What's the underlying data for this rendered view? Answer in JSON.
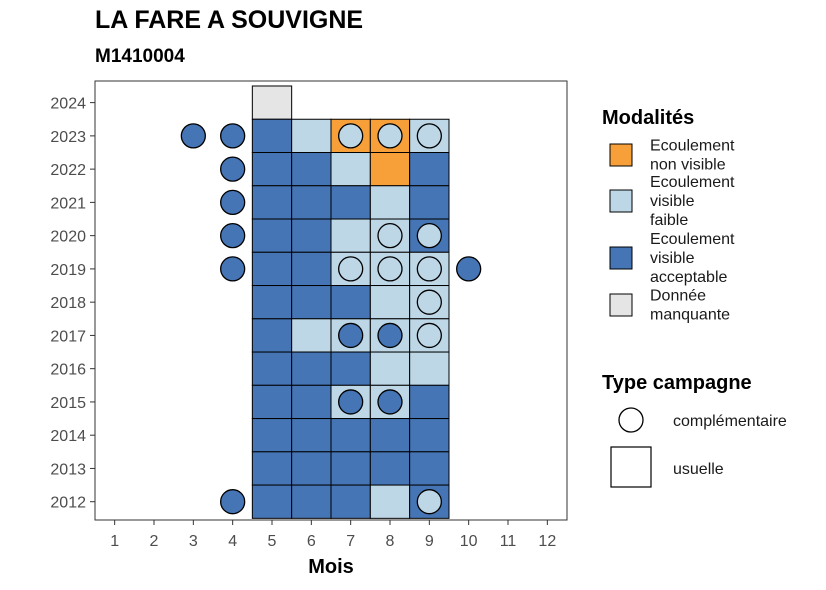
{
  "title": "LA FARE A SOUVIGNE",
  "subtitle": "M1410004",
  "chart_data": {
    "type": "heatmap",
    "xlabel": "Mois",
    "ylabel": "",
    "x_ticks": [
      1,
      2,
      3,
      4,
      5,
      6,
      7,
      8,
      9,
      10,
      11,
      12
    ],
    "y_ticks": [
      2012,
      2013,
      2014,
      2015,
      2016,
      2017,
      2018,
      2019,
      2020,
      2021,
      2022,
      2023,
      2024
    ],
    "colors": {
      "non_visible": "#F7A03A",
      "visible_faible": "#BDD7E7",
      "visible_acceptable": "#4575B4",
      "manquante": "#E5E5E5"
    },
    "usuelle": [
      {
        "year": 2024,
        "month": 5,
        "modalite": "manquante"
      },
      {
        "year": 2023,
        "month": 5,
        "modalite": "visible_acceptable"
      },
      {
        "year": 2023,
        "month": 6,
        "modalite": "visible_faible"
      },
      {
        "year": 2023,
        "month": 7,
        "modalite": "non_visible"
      },
      {
        "year": 2023,
        "month": 8,
        "modalite": "non_visible"
      },
      {
        "year": 2023,
        "month": 9,
        "modalite": "visible_faible"
      },
      {
        "year": 2022,
        "month": 5,
        "modalite": "visible_acceptable"
      },
      {
        "year": 2022,
        "month": 6,
        "modalite": "visible_acceptable"
      },
      {
        "year": 2022,
        "month": 7,
        "modalite": "visible_faible"
      },
      {
        "year": 2022,
        "month": 8,
        "modalite": "non_visible"
      },
      {
        "year": 2022,
        "month": 9,
        "modalite": "visible_acceptable"
      },
      {
        "year": 2021,
        "month": 5,
        "modalite": "visible_acceptable"
      },
      {
        "year": 2021,
        "month": 6,
        "modalite": "visible_acceptable"
      },
      {
        "year": 2021,
        "month": 7,
        "modalite": "visible_acceptable"
      },
      {
        "year": 2021,
        "month": 8,
        "modalite": "visible_faible"
      },
      {
        "year": 2021,
        "month": 9,
        "modalite": "visible_acceptable"
      },
      {
        "year": 2020,
        "month": 5,
        "modalite": "visible_acceptable"
      },
      {
        "year": 2020,
        "month": 6,
        "modalite": "visible_acceptable"
      },
      {
        "year": 2020,
        "month": 7,
        "modalite": "visible_faible"
      },
      {
        "year": 2020,
        "month": 8,
        "modalite": "visible_faible"
      },
      {
        "year": 2020,
        "month": 9,
        "modalite": "visible_acceptable"
      },
      {
        "year": 2019,
        "month": 5,
        "modalite": "visible_acceptable"
      },
      {
        "year": 2019,
        "month": 6,
        "modalite": "visible_acceptable"
      },
      {
        "year": 2019,
        "month": 7,
        "modalite": "visible_faible"
      },
      {
        "year": 2019,
        "month": 8,
        "modalite": "visible_faible"
      },
      {
        "year": 2019,
        "month": 9,
        "modalite": "visible_faible"
      },
      {
        "year": 2018,
        "month": 5,
        "modalite": "visible_acceptable"
      },
      {
        "year": 2018,
        "month": 6,
        "modalite": "visible_acceptable"
      },
      {
        "year": 2018,
        "month": 7,
        "modalite": "visible_acceptable"
      },
      {
        "year": 2018,
        "month": 8,
        "modalite": "visible_faible"
      },
      {
        "year": 2018,
        "month": 9,
        "modalite": "visible_faible"
      },
      {
        "year": 2017,
        "month": 5,
        "modalite": "visible_acceptable"
      },
      {
        "year": 2017,
        "month": 6,
        "modalite": "visible_faible"
      },
      {
        "year": 2017,
        "month": 7,
        "modalite": "visible_faible"
      },
      {
        "year": 2017,
        "month": 8,
        "modalite": "visible_faible"
      },
      {
        "year": 2017,
        "month": 9,
        "modalite": "visible_faible"
      },
      {
        "year": 2016,
        "month": 5,
        "modalite": "visible_acceptable"
      },
      {
        "year": 2016,
        "month": 6,
        "modalite": "visible_acceptable"
      },
      {
        "year": 2016,
        "month": 7,
        "modalite": "visible_acceptable"
      },
      {
        "year": 2016,
        "month": 8,
        "modalite": "visible_faible"
      },
      {
        "year": 2016,
        "month": 9,
        "modalite": "visible_faible"
      },
      {
        "year": 2015,
        "month": 5,
        "modalite": "visible_acceptable"
      },
      {
        "year": 2015,
        "month": 6,
        "modalite": "visible_acceptable"
      },
      {
        "year": 2015,
        "month": 7,
        "modalite": "visible_faible"
      },
      {
        "year": 2015,
        "month": 8,
        "modalite": "visible_faible"
      },
      {
        "year": 2015,
        "month": 9,
        "modalite": "visible_acceptable"
      },
      {
        "year": 2014,
        "month": 5,
        "modalite": "visible_acceptable"
      },
      {
        "year": 2014,
        "month": 6,
        "modalite": "visible_acceptable"
      },
      {
        "year": 2014,
        "month": 7,
        "modalite": "visible_acceptable"
      },
      {
        "year": 2014,
        "month": 8,
        "modalite": "visible_acceptable"
      },
      {
        "year": 2014,
        "month": 9,
        "modalite": "visible_acceptable"
      },
      {
        "year": 2013,
        "month": 5,
        "modalite": "visible_acceptable"
      },
      {
        "year": 2013,
        "month": 6,
        "modalite": "visible_acceptable"
      },
      {
        "year": 2013,
        "month": 7,
        "modalite": "visible_acceptable"
      },
      {
        "year": 2013,
        "month": 8,
        "modalite": "visible_acceptable"
      },
      {
        "year": 2013,
        "month": 9,
        "modalite": "visible_acceptable"
      },
      {
        "year": 2012,
        "month": 5,
        "modalite": "visible_acceptable"
      },
      {
        "year": 2012,
        "month": 6,
        "modalite": "visible_acceptable"
      },
      {
        "year": 2012,
        "month": 7,
        "modalite": "visible_acceptable"
      },
      {
        "year": 2012,
        "month": 8,
        "modalite": "visible_faible"
      },
      {
        "year": 2012,
        "month": 9,
        "modalite": "visible_acceptable"
      }
    ],
    "complementaire": [
      {
        "year": 2023,
        "month": 3,
        "modalite": "visible_acceptable"
      },
      {
        "year": 2023,
        "month": 4,
        "modalite": "visible_acceptable"
      },
      {
        "year": 2023,
        "month": 7,
        "modalite": "visible_faible"
      },
      {
        "year": 2023,
        "month": 8,
        "modalite": "visible_faible"
      },
      {
        "year": 2023,
        "month": 9,
        "modalite": "visible_faible"
      },
      {
        "year": 2022,
        "month": 4,
        "modalite": "visible_acceptable"
      },
      {
        "year": 2021,
        "month": 4,
        "modalite": "visible_acceptable"
      },
      {
        "year": 2020,
        "month": 4,
        "modalite": "visible_acceptable"
      },
      {
        "year": 2020,
        "month": 8,
        "modalite": "visible_faible"
      },
      {
        "year": 2020,
        "month": 9,
        "modalite": "visible_faible"
      },
      {
        "year": 2019,
        "month": 4,
        "modalite": "visible_acceptable"
      },
      {
        "year": 2019,
        "month": 7,
        "modalite": "visible_faible"
      },
      {
        "year": 2019,
        "month": 8,
        "modalite": "visible_faible"
      },
      {
        "year": 2019,
        "month": 9,
        "modalite": "visible_faible"
      },
      {
        "year": 2019,
        "month": 10,
        "modalite": "visible_acceptable"
      },
      {
        "year": 2018,
        "month": 9,
        "modalite": "visible_faible"
      },
      {
        "year": 2017,
        "month": 7,
        "modalite": "visible_acceptable"
      },
      {
        "year": 2017,
        "month": 8,
        "modalite": "visible_acceptable"
      },
      {
        "year": 2017,
        "month": 9,
        "modalite": "visible_faible"
      },
      {
        "year": 2015,
        "month": 7,
        "modalite": "visible_acceptable"
      },
      {
        "year": 2015,
        "month": 8,
        "modalite": "visible_acceptable"
      },
      {
        "year": 2012,
        "month": 4,
        "modalite": "visible_acceptable"
      },
      {
        "year": 2012,
        "month": 9,
        "modalite": "visible_faible"
      }
    ]
  },
  "legend": {
    "modalites_title": "Modalités",
    "modalites": [
      {
        "key": "non_visible",
        "lines": [
          "Ecoulement",
          "non visible"
        ]
      },
      {
        "key": "visible_faible",
        "lines": [
          "Ecoulement",
          "visible",
          "faible"
        ]
      },
      {
        "key": "visible_acceptable",
        "lines": [
          "Ecoulement",
          "visible",
          "acceptable"
        ]
      },
      {
        "key": "manquante",
        "lines": [
          "Donnée",
          "manquante"
        ]
      }
    ],
    "type_title": "Type campagne",
    "types": [
      {
        "key": "complementaire",
        "label": "complémentaire"
      },
      {
        "key": "usuelle",
        "label": "usuelle"
      }
    ]
  }
}
